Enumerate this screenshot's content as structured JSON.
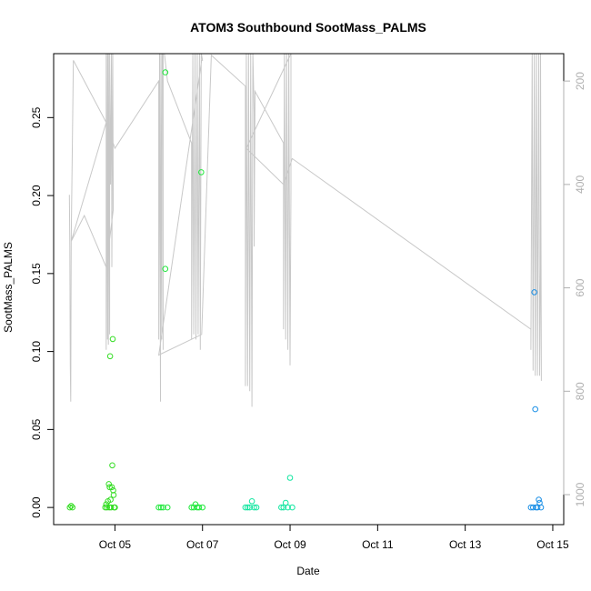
{
  "chart_data": {
    "type": "scatter",
    "title": "ATOM3 Southbound SootMass_PALMS",
    "xlabel": "Date",
    "ylabel": "SootMass_PALMS",
    "xlim": [
      3.6,
      15.25
    ],
    "ylim": [
      -0.011,
      0.291
    ],
    "x_ticks": [
      {
        "value": 5,
        "label": "Oct 05"
      },
      {
        "value": 7,
        "label": "Oct 07"
      },
      {
        "value": 9,
        "label": "Oct 09"
      },
      {
        "value": 11,
        "label": "Oct 11"
      },
      {
        "value": 13,
        "label": "Oct 13"
      },
      {
        "value": 15,
        "label": "Oct 15"
      }
    ],
    "y_ticks": [
      {
        "value": 0.0,
        "label": "0.00"
      },
      {
        "value": 0.05,
        "label": "0.05"
      },
      {
        "value": 0.1,
        "label": "0.10"
      },
      {
        "value": 0.15,
        "label": "0.15"
      },
      {
        "value": 0.2,
        "label": "0.20"
      },
      {
        "value": 0.25,
        "label": "0.25"
      }
    ],
    "right_axis": {
      "lim": [
        1058,
        147
      ],
      "color": "#b0b0b0",
      "ticks": [
        {
          "value": 200,
          "label": "200"
        },
        {
          "value": 400,
          "label": "400"
        },
        {
          "value": 600,
          "label": "600"
        },
        {
          "value": 800,
          "label": "800"
        },
        {
          "value": 1000,
          "label": "1000"
        }
      ]
    },
    "grid": false,
    "legend": "none",
    "line_color": "#c8c8c8",
    "series": [
      {
        "color": "#33dd22",
        "points": [
          {
            "x": 3.97,
            "y": 0.0
          },
          {
            "x": 4.0,
            "y": 0.001
          },
          {
            "x": 4.03,
            "y": 0.0
          },
          {
            "x": 4.78,
            "y": 0.0
          },
          {
            "x": 4.8,
            "y": 0.002
          },
          {
            "x": 4.82,
            "y": 0.0
          },
          {
            "x": 4.84,
            "y": 0.004
          },
          {
            "x": 4.86,
            "y": 0.015
          },
          {
            "x": 4.87,
            "y": 0.0
          },
          {
            "x": 4.88,
            "y": 0.013
          },
          {
            "x": 4.89,
            "y": 0.097
          },
          {
            "x": 4.9,
            "y": 0.005
          },
          {
            "x": 4.91,
            "y": 0.0
          },
          {
            "x": 4.93,
            "y": 0.013
          },
          {
            "x": 4.94,
            "y": 0.027
          },
          {
            "x": 4.95,
            "y": 0.108
          },
          {
            "x": 4.96,
            "y": 0.011
          },
          {
            "x": 4.97,
            "y": 0.008
          },
          {
            "x": 4.98,
            "y": 0.0
          },
          {
            "x": 5.0,
            "y": 0.0
          }
        ]
      },
      {
        "color": "#1ee83a",
        "points": [
          {
            "x": 6.0,
            "y": 0.0
          },
          {
            "x": 6.05,
            "y": 0.0
          },
          {
            "x": 6.1,
            "y": 0.0
          },
          {
            "x": 6.15,
            "y": 0.279
          },
          {
            "x": 6.15,
            "y": 0.153
          },
          {
            "x": 6.2,
            "y": 0.0
          },
          {
            "x": 6.75,
            "y": 0.0
          },
          {
            "x": 6.8,
            "y": 0.0
          },
          {
            "x": 6.84,
            "y": 0.002
          },
          {
            "x": 6.88,
            "y": 0.0
          },
          {
            "x": 6.92,
            "y": 0.0
          },
          {
            "x": 6.97,
            "y": 0.215
          },
          {
            "x": 7.0,
            "y": 0.0
          }
        ]
      },
      {
        "color": "#11e6a0",
        "points": [
          {
            "x": 7.98,
            "y": 0.0
          },
          {
            "x": 8.03,
            "y": 0.0
          },
          {
            "x": 8.08,
            "y": 0.0
          },
          {
            "x": 8.13,
            "y": 0.004
          },
          {
            "x": 8.18,
            "y": 0.0
          },
          {
            "x": 8.23,
            "y": 0.0
          },
          {
            "x": 8.8,
            "y": 0.0
          },
          {
            "x": 8.85,
            "y": 0.0
          },
          {
            "x": 8.9,
            "y": 0.003
          },
          {
            "x": 8.95,
            "y": 0.0
          },
          {
            "x": 9.0,
            "y": 0.019
          },
          {
            "x": 9.05,
            "y": 0.0
          }
        ]
      },
      {
        "color": "#1a8fe6",
        "points": [
          {
            "x": 14.5,
            "y": 0.0
          },
          {
            "x": 14.55,
            "y": 0.0
          },
          {
            "x": 14.58,
            "y": 0.138
          },
          {
            "x": 14.6,
            "y": 0.063
          },
          {
            "x": 14.62,
            "y": 0.0
          },
          {
            "x": 14.65,
            "y": 0.0
          },
          {
            "x": 14.68,
            "y": 0.005
          },
          {
            "x": 14.7,
            "y": 0.003
          },
          {
            "x": 14.73,
            "y": 0.0
          }
        ]
      }
    ],
    "line": {
      "name_hidden": true,
      "points": [
        [
          3.96,
          420
        ],
        [
          3.97,
          520
        ],
        [
          3.98,
          750
        ],
        [
          3.99,
          820
        ],
        [
          4.0,
          510
        ],
        [
          4.05,
          160
        ],
        [
          4.8,
          280
        ],
        [
          4.8,
          720
        ],
        [
          4.8,
          140
        ],
        [
          4.83,
          700
        ],
        [
          4.83,
          140
        ],
        [
          4.85,
          710
        ],
        [
          4.85,
          140
        ],
        [
          4.88,
          690
        ],
        [
          4.88,
          140
        ],
        [
          4.9,
          400
        ],
        [
          4.92,
          140
        ],
        [
          4.93,
          560
        ],
        [
          4.95,
          140
        ],
        [
          4.96,
          420
        ],
        [
          4.96,
          450
        ],
        [
          4.8,
          560
        ],
        [
          4.3,
          460
        ],
        [
          4.0,
          510
        ],
        [
          4.8,
          280
        ],
        [
          5.0,
          330
        ],
        [
          6.0,
          200
        ],
        [
          6.0,
          700
        ],
        [
          6.02,
          140
        ],
        [
          6.04,
          820
        ],
        [
          6.05,
          140
        ],
        [
          6.07,
          700
        ],
        [
          6.08,
          140
        ],
        [
          6.1,
          200
        ],
        [
          6.1,
          720
        ],
        [
          6.1,
          140
        ],
        [
          6.13,
          140
        ],
        [
          6.2,
          200
        ],
        [
          6.75,
          320
        ],
        [
          6.75,
          700
        ],
        [
          6.78,
          140
        ],
        [
          6.8,
          690
        ],
        [
          6.83,
          140
        ],
        [
          6.85,
          700
        ],
        [
          6.88,
          140
        ],
        [
          6.9,
          690
        ],
        [
          6.93,
          140
        ],
        [
          6.95,
          720
        ],
        [
          6.97,
          140
        ],
        [
          6.98,
          150
        ],
        [
          7.0,
          160
        ],
        [
          6.98,
          160
        ],
        [
          6.0,
          730
        ],
        [
          6.98,
          690
        ],
        [
          7.2,
          150
        ],
        [
          7.98,
          210
        ],
        [
          7.98,
          790
        ],
        [
          8.0,
          140
        ],
        [
          8.03,
          790
        ],
        [
          8.05,
          140
        ],
        [
          8.08,
          800
        ],
        [
          8.1,
          140
        ],
        [
          8.13,
          830
        ],
        [
          8.15,
          140
        ],
        [
          8.18,
          260
        ],
        [
          8.18,
          520
        ],
        [
          8.2,
          220
        ],
        [
          8.85,
          320
        ],
        [
          8.85,
          680
        ],
        [
          8.87,
          140
        ],
        [
          8.9,
          700
        ],
        [
          8.92,
          140
        ],
        [
          8.95,
          720
        ],
        [
          8.97,
          140
        ],
        [
          9.0,
          750
        ],
        [
          9.02,
          410
        ],
        [
          9.02,
          140
        ],
        [
          8.0,
          330
        ],
        [
          8.85,
          400
        ],
        [
          9.05,
          350
        ],
        [
          14.5,
          680
        ],
        [
          14.5,
          720
        ],
        [
          14.53,
          140
        ],
        [
          14.55,
          760
        ],
        [
          14.58,
          140
        ],
        [
          14.6,
          770
        ],
        [
          14.63,
          140
        ],
        [
          14.65,
          770
        ],
        [
          14.68,
          140
        ],
        [
          14.7,
          770
        ],
        [
          14.72,
          560
        ],
        [
          14.72,
          140
        ],
        [
          14.74,
          780
        ]
      ]
    }
  }
}
